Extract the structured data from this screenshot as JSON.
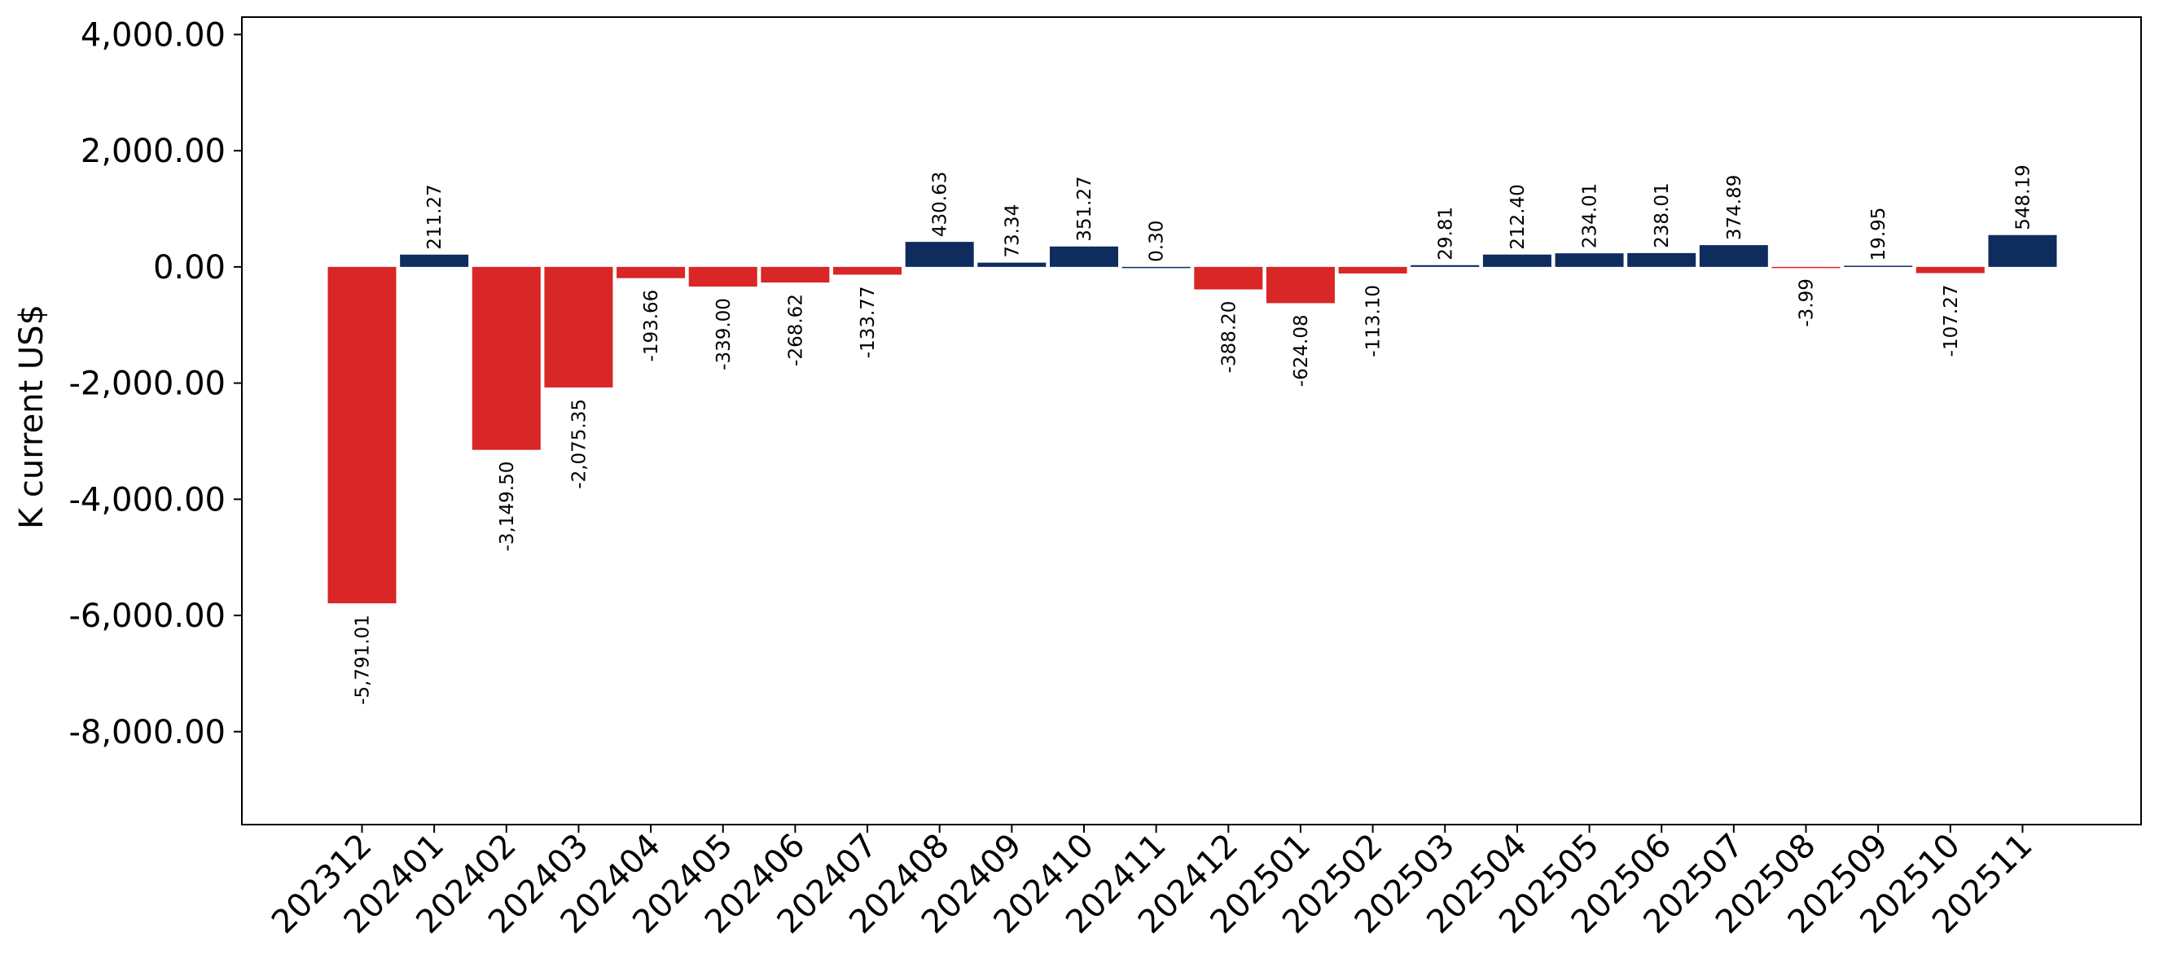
{
  "chart_data": {
    "type": "bar",
    "title": "",
    "xlabel": "",
    "ylabel": "K current US$",
    "ylim": [
      -9600,
      4300
    ],
    "yticks": [
      4000,
      2000,
      0,
      -2000,
      -4000,
      -6000,
      -8000
    ],
    "ytick_labels": [
      "4,000.00",
      "2,000.00",
      "0.00",
      "-2,000.00",
      "-4,000.00",
      "-6,000.00",
      "-8,000.00"
    ],
    "categories": [
      "202312",
      "202401",
      "202402",
      "202403",
      "202404",
      "202405",
      "202406",
      "202407",
      "202408",
      "202409",
      "202410",
      "202411",
      "202412",
      "202501",
      "202502",
      "202503",
      "202504",
      "202505",
      "202506",
      "202507",
      "202508",
      "202509",
      "202510",
      "202511"
    ],
    "values": [
      -5791.01,
      211.27,
      -3149.5,
      -2075.35,
      -193.66,
      -339.0,
      -268.62,
      -133.77,
      430.63,
      73.34,
      351.27,
      0.3,
      -388.2,
      -624.08,
      -113.1,
      29.81,
      212.4,
      234.01,
      238.01,
      374.89,
      -3.99,
      19.95,
      -107.27,
      548.19
    ],
    "value_labels": [
      "-5,791.01",
      "211.27",
      "-3,149.50",
      "-2,075.35",
      "-193.66",
      "-339.00",
      "-268.62",
      "-133.77",
      "430.63",
      "73.34",
      "351.27",
      "0.30",
      "-388.20",
      "-624.08",
      "-113.10",
      "29.81",
      "212.40",
      "234.01",
      "238.01",
      "374.89",
      "-3.99",
      "19.95",
      "-107.27",
      "548.19"
    ],
    "colors": {
      "positive": "#0e2d5e",
      "negative": "#d92626"
    },
    "grid": false,
    "legend": "none"
  }
}
